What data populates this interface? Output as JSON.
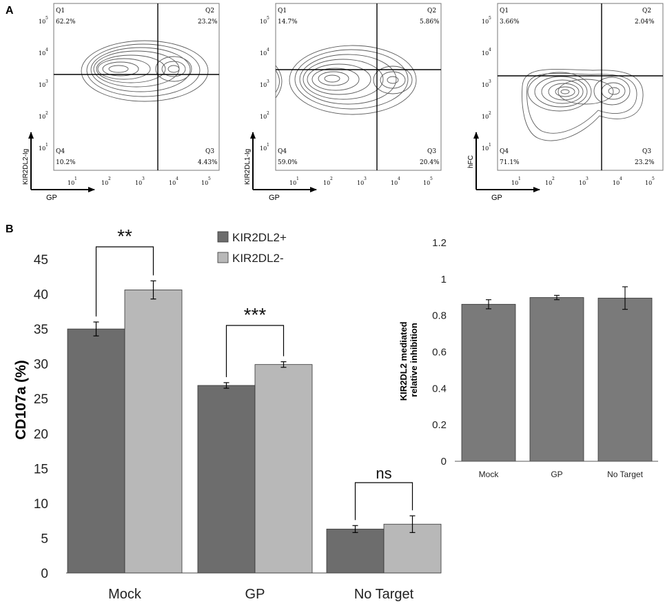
{
  "panel_a": {
    "label": "A",
    "plots": [
      {
        "y_label": "KIR2DL2-Ig",
        "x_label": "GP",
        "quadrants": [
          {
            "name": "Q1",
            "value": "62.2%"
          },
          {
            "name": "Q2",
            "value": "23.2%"
          },
          {
            "name": "Q3",
            "value": "4.43%"
          },
          {
            "name": "Q4",
            "value": "10.2%"
          }
        ]
      },
      {
        "y_label": "KIR2DL1-Ig",
        "x_label": "GP",
        "quadrants": [
          {
            "name": "Q1",
            "value": "14.7%"
          },
          {
            "name": "Q2",
            "value": "5.86%"
          },
          {
            "name": "Q3",
            "value": "20.4%"
          },
          {
            "name": "Q4",
            "value": "59.0%"
          }
        ]
      },
      {
        "y_label": "hFC",
        "x_label": "GP",
        "quadrants": [
          {
            "name": "Q1",
            "value": "3.66%"
          },
          {
            "name": "Q2",
            "value": "2.04%"
          },
          {
            "name": "Q3",
            "value": "23.2%"
          },
          {
            "name": "Q4",
            "value": "71.1%"
          }
        ]
      }
    ],
    "axis_ticks": [
      "10",
      "10",
      "10",
      "10",
      "10"
    ],
    "axis_tick_exponents": [
      "1",
      "2",
      "3",
      "4",
      "5"
    ]
  },
  "panel_b": {
    "label": "B"
  },
  "chart_data": [
    {
      "type": "bar",
      "title": "",
      "xlabel": "",
      "ylabel": "CD107a (%)",
      "ylim": [
        0,
        45
      ],
      "yticks": [
        0,
        5,
        10,
        15,
        20,
        25,
        30,
        35,
        40,
        45
      ],
      "categories": [
        "Mock",
        "GP",
        "No Target"
      ],
      "series": [
        {
          "name": "KIR2DL2+",
          "color": "#6d6d6d",
          "values": [
            35.0,
            26.9,
            6.3
          ],
          "errors": [
            1.0,
            0.4,
            0.5
          ]
        },
        {
          "name": "KIR2DL2-",
          "color": "#b8b8b8",
          "values": [
            40.6,
            29.9,
            7.0
          ],
          "errors": [
            1.3,
            0.4,
            1.2
          ]
        }
      ],
      "significance": [
        "**",
        "***",
        "ns"
      ],
      "legend_position": "top-center"
    },
    {
      "type": "bar",
      "title": "",
      "xlabel": "",
      "ylabel": "KIR2DL2 mediated relative inhibition",
      "ylim": [
        0,
        1.2
      ],
      "yticks": [
        "0",
        "0.2",
        "0.4",
        "0.6",
        "0.8",
        "1",
        "1.2"
      ],
      "categories": [
        "Mock",
        "GP",
        "No Target"
      ],
      "series": [
        {
          "name": "relative inhibition",
          "color": "#7a7a7a",
          "values": [
            0.862,
            0.899,
            0.896
          ],
          "errors": [
            0.025,
            0.012,
            0.062
          ]
        }
      ]
    }
  ]
}
